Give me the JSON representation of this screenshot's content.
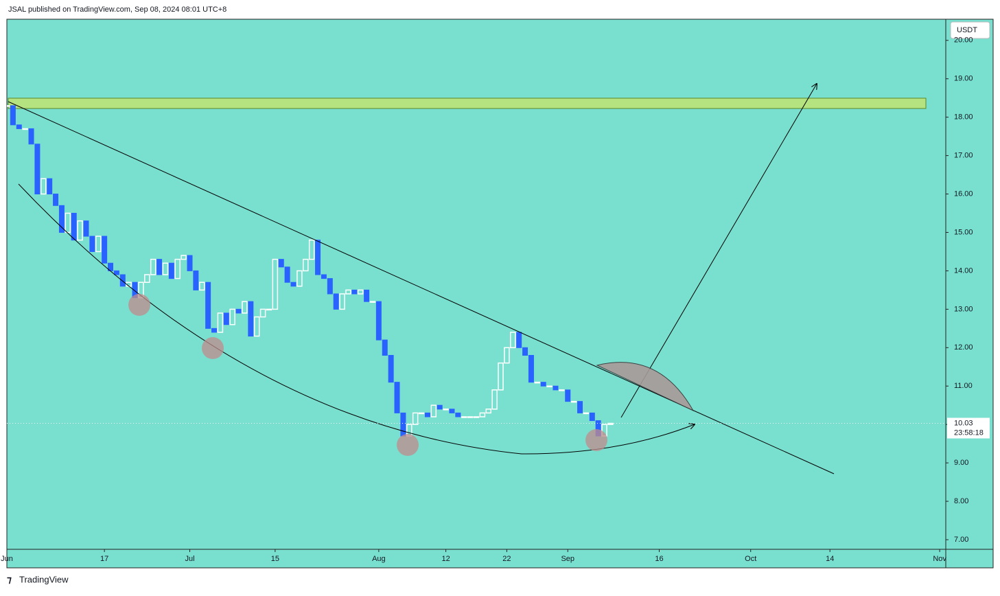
{
  "header": "JSAL published on TradingView.com, Sep 08, 2024 08:01 UTC+8",
  "brand": "TradingView",
  "chart_data": {
    "type": "candlestick",
    "currency": "USDT",
    "last_price": 10.03,
    "countdown": "23:58:18",
    "up_color": "#ffffff",
    "down_color": "#2962ff",
    "xlim": [
      "2024-06-01",
      "2024-11-02"
    ],
    "ylim": [
      6.75,
      20.55
    ],
    "yticks": [
      {
        "value": 7,
        "label": "7.00"
      },
      {
        "value": 8,
        "label": "8.00"
      },
      {
        "value": 9,
        "label": "9.00"
      },
      {
        "value": 10,
        "label": "10.00"
      },
      {
        "value": 11,
        "label": "11.00"
      },
      {
        "value": 12,
        "label": "12.00"
      },
      {
        "value": 13,
        "label": "13.00"
      },
      {
        "value": 14,
        "label": "14.00"
      },
      {
        "value": 15,
        "label": "15.00"
      },
      {
        "value": 16,
        "label": "16.00"
      },
      {
        "value": 17,
        "label": "17.00"
      },
      {
        "value": 18,
        "label": "18.00"
      },
      {
        "value": 19,
        "label": "19.00"
      },
      {
        "value": 20,
        "label": "20.00"
      }
    ],
    "xticks": [
      {
        "value": "2024-06-01",
        "label": "Jun"
      },
      {
        "value": "2024-06-17",
        "label": "17"
      },
      {
        "value": "2024-07-01",
        "label": "Jul"
      },
      {
        "value": "2024-07-15",
        "label": "15"
      },
      {
        "value": "2024-08-01",
        "label": "Aug"
      },
      {
        "value": "2024-08-12",
        "label": "12"
      },
      {
        "value": "2024-08-22",
        "label": "22"
      },
      {
        "value": "2024-09-01",
        "label": "Sep"
      },
      {
        "value": "2024-09-16",
        "label": "16"
      },
      {
        "value": "2024-10-01",
        "label": "Oct"
      },
      {
        "value": "2024-10-14",
        "label": "14"
      },
      {
        "value": "2024-11-01",
        "label": "Nov"
      }
    ],
    "x": [
      "2024-06-01",
      "2024-06-02",
      "2024-06-03",
      "2024-06-04",
      "2024-06-05",
      "2024-06-06",
      "2024-06-07",
      "2024-06-08",
      "2024-06-09",
      "2024-06-10",
      "2024-06-11",
      "2024-06-12",
      "2024-06-13",
      "2024-06-14",
      "2024-06-15",
      "2024-06-16",
      "2024-06-17",
      "2024-06-18",
      "2024-06-19",
      "2024-06-20",
      "2024-06-21",
      "2024-06-22",
      "2024-06-23",
      "2024-06-24",
      "2024-06-25",
      "2024-06-26",
      "2024-06-27",
      "2024-06-28",
      "2024-06-29",
      "2024-06-30",
      "2024-07-01",
      "2024-07-02",
      "2024-07-03",
      "2024-07-04",
      "2024-07-05",
      "2024-07-06",
      "2024-07-07",
      "2024-07-08",
      "2024-07-09",
      "2024-07-10",
      "2024-07-11",
      "2024-07-12",
      "2024-07-13",
      "2024-07-14",
      "2024-07-15",
      "2024-07-16",
      "2024-07-17",
      "2024-07-18",
      "2024-07-19",
      "2024-07-20",
      "2024-07-21",
      "2024-07-22",
      "2024-07-23",
      "2024-07-24",
      "2024-07-25",
      "2024-07-26",
      "2024-07-27",
      "2024-07-28",
      "2024-07-29",
      "2024-07-30",
      "2024-07-31",
      "2024-08-01",
      "2024-08-02",
      "2024-08-03",
      "2024-08-04",
      "2024-08-05",
      "2024-08-06",
      "2024-08-07",
      "2024-08-08",
      "2024-08-09",
      "2024-08-10",
      "2024-08-11",
      "2024-08-12",
      "2024-08-13",
      "2024-08-14",
      "2024-08-15",
      "2024-08-16",
      "2024-08-17",
      "2024-08-18",
      "2024-08-19",
      "2024-08-20",
      "2024-08-21",
      "2024-08-22",
      "2024-08-23",
      "2024-08-24",
      "2024-08-25",
      "2024-08-26",
      "2024-08-27",
      "2024-08-28",
      "2024-08-29",
      "2024-08-30",
      "2024-08-31",
      "2024-09-01",
      "2024-09-02",
      "2024-09-03",
      "2024-09-04",
      "2024-09-05",
      "2024-09-06",
      "2024-09-07",
      "2024-09-08"
    ],
    "close": [
      18.3,
      17.8,
      17.7,
      17.7,
      17.3,
      16.0,
      16.4,
      16.0,
      15.7,
      15.0,
      15.5,
      14.8,
      15.3,
      14.9,
      14.5,
      14.9,
      14.2,
      14.0,
      13.9,
      13.6,
      13.7,
      13.3,
      13.7,
      13.9,
      14.3,
      13.9,
      14.2,
      13.8,
      14.3,
      14.4,
      14.0,
      13.5,
      13.7,
      12.5,
      12.4,
      12.9,
      12.6,
      13.0,
      12.9,
      13.2,
      12.3,
      12.8,
      13.0,
      13.0,
      14.3,
      14.1,
      13.7,
      13.6,
      14.0,
      14.3,
      14.8,
      13.9,
      13.8,
      13.4,
      13.0,
      13.4,
      13.5,
      13.4,
      13.5,
      13.2,
      13.2,
      12.2,
      11.8,
      11.1,
      10.3,
      9.7,
      10.0,
      10.3,
      10.3,
      10.2,
      10.5,
      10.4,
      10.4,
      10.3,
      10.2,
      10.2,
      10.2,
      10.2,
      10.3,
      10.4,
      10.9,
      11.6,
      12.0,
      12.4,
      12.0,
      11.8,
      11.1,
      11.1,
      11.0,
      11.0,
      10.9,
      10.9,
      10.6,
      10.6,
      10.3,
      10.3,
      10.1,
      9.7,
      10.0,
      10.03
    ]
  }
}
